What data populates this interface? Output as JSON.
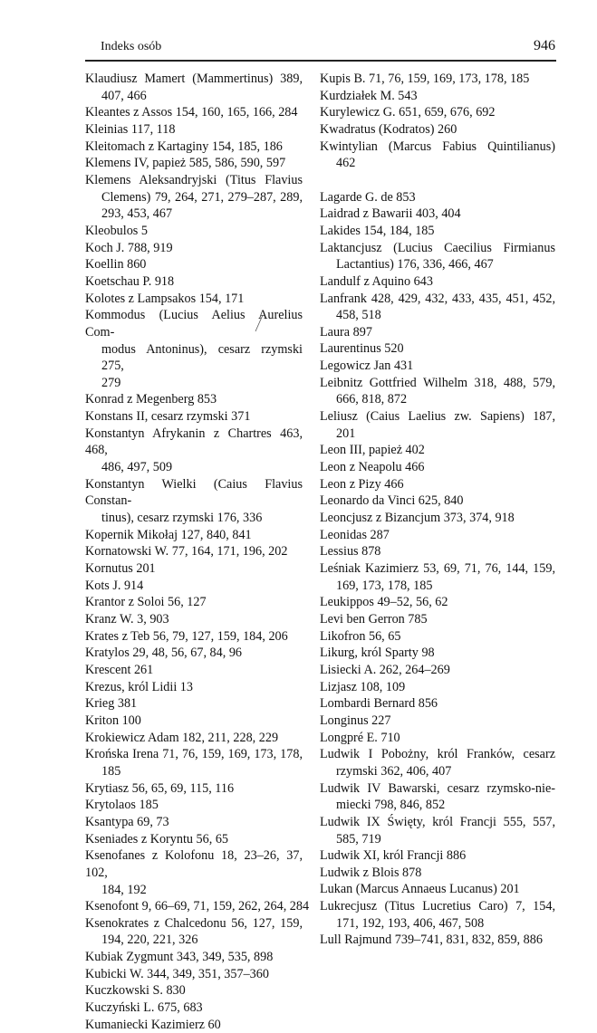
{
  "header": {
    "section_title": "Indeks osób",
    "page_number": "946"
  },
  "left_column": [
    {
      "lines": [
        "Klaudiusz Mamert (Mammertinus) 389,",
        "407, 466"
      ]
    },
    {
      "lines": [
        "Kleantes z Assos 154, 160, 165, 166, 284"
      ]
    },
    {
      "lines": [
        "Kleinias 117, 118"
      ]
    },
    {
      "lines": [
        "Kleitomach z Kartaginy 154, 185, 186"
      ]
    },
    {
      "lines": [
        "Klemens IV, papież 585, 586, 590, 597"
      ]
    },
    {
      "lines": [
        "Klemens Aleksandryjski (Titus Flavius",
        "Clemens) 79, 264, 271, 279–287, 289,",
        "293, 453, 467"
      ]
    },
    {
      "lines": [
        "Kleobulos 5"
      ]
    },
    {
      "lines": [
        "Koch J. 788, 919"
      ]
    },
    {
      "lines": [
        "Koellin 860"
      ]
    },
    {
      "lines": [
        "Koetschau P. 918"
      ]
    },
    {
      "lines": [
        "Kolotes z Lampsakos 154, 171"
      ]
    },
    {
      "lines": [
        "Kommodus (Lucius Aelius Aurelius Com-",
        "modus Antoninus), cesarz rzymski 275,",
        "279"
      ]
    },
    {
      "lines": [
        "Konrad z Megenberg 853"
      ]
    },
    {
      "lines": [
        "Konstans II, cesarz rzymski 371"
      ]
    },
    {
      "lines": [
        "Konstantyn Afrykanin z Chartres 463, 468,",
        "486, 497, 509"
      ]
    },
    {
      "lines": [
        "Konstantyn Wielki (Caius Flavius Constan-",
        "tinus), cesarz rzymski 176, 336"
      ]
    },
    {
      "lines": [
        "Kopernik Mikołaj 127, 840, 841"
      ]
    },
    {
      "lines": [
        "Kornatowski W. 77, 164, 171, 196, 202"
      ]
    },
    {
      "lines": [
        "Kornutus 201"
      ]
    },
    {
      "lines": [
        "Kots J. 914"
      ]
    },
    {
      "lines": [
        "Krantor z Soloi 56, 127"
      ]
    },
    {
      "lines": [
        "Kranz W. 3, 903"
      ]
    },
    {
      "lines": [
        "Krates z Teb 56, 79, 127, 159, 184, 206"
      ]
    },
    {
      "lines": [
        "Kratylos 29, 48, 56, 67, 84, 96"
      ]
    },
    {
      "lines": [
        "Krescent 261"
      ]
    },
    {
      "lines": [
        "Krezus, król Lidii 13"
      ]
    },
    {
      "lines": [
        "Krieg 381"
      ]
    },
    {
      "lines": [
        "Kriton 100"
      ]
    },
    {
      "lines": [
        "Krokiewicz Adam 182, 211, 228, 229"
      ]
    },
    {
      "lines": [
        "Krońska Irena 71, 76, 159, 169, 173, 178,",
        "185"
      ]
    },
    {
      "lines": [
        "Krytiasz 56, 65, 69, 115, 116"
      ]
    },
    {
      "lines": [
        "Krytolaos 185"
      ]
    },
    {
      "lines": [
        "Ksantypa 69, 73"
      ]
    },
    {
      "lines": [
        "Kseniades z Koryntu 56, 65"
      ]
    },
    {
      "lines": [
        "Ksenofanes z Kolofonu 18, 23–26, 37, 102,",
        "184, 192"
      ]
    },
    {
      "lines": [
        "Ksenofont 9, 66–69, 71, 159, 262, 264, 284"
      ]
    },
    {
      "lines": [
        "Ksenokrates z Chalcedonu 56, 127, 159,",
        "194, 220, 221, 326"
      ]
    },
    {
      "lines": [
        "Kubiak Zygmunt 343, 349, 535, 898"
      ]
    },
    {
      "lines": [
        "Kubicki W. 344, 349, 351, 357–360"
      ]
    },
    {
      "lines": [
        "Kuczkowski S. 830"
      ]
    },
    {
      "lines": [
        "Kuczyński L. 675, 683"
      ]
    },
    {
      "lines": [
        "Kumaniecki Kazimierz 60"
      ]
    }
  ],
  "right_column": [
    {
      "lines": [
        "Kupis B. 71, 76, 159, 169, 173, 178, 185"
      ]
    },
    {
      "lines": [
        "Kurdziałek M. 543"
      ]
    },
    {
      "lines": [
        "Kurylewicz G. 651, 659, 676, 692"
      ]
    },
    {
      "lines": [
        "Kwadratus (Kodratos) 260"
      ]
    },
    {
      "lines": [
        "Kwintylian (Marcus Fabius Quintilianus)",
        "462"
      ]
    },
    {
      "blank": true
    },
    {
      "lines": [
        "Lagarde G. de 853"
      ]
    },
    {
      "lines": [
        "Laidrad z Bawarii 403, 404"
      ]
    },
    {
      "lines": [
        "Lakides 154, 184, 185"
      ]
    },
    {
      "lines": [
        "Laktancjusz (Lucius Caecilius Firmianus",
        "Lactantius) 176, 336, 466, 467"
      ]
    },
    {
      "lines": [
        "Landulf z Aquino 643"
      ]
    },
    {
      "lines": [
        "Lanfrank 428, 429, 432, 433, 435, 451, 452,",
        "458, 518"
      ]
    },
    {
      "lines": [
        "Laura 897"
      ]
    },
    {
      "lines": [
        "Laurentinus 520"
      ]
    },
    {
      "lines": [
        "Legowicz Jan 431"
      ]
    },
    {
      "lines": [
        "Leibnitz Gottfried Wilhelm 318, 488, 579,",
        "666, 818, 872"
      ]
    },
    {
      "lines": [
        "Leliusz (Caius Laelius zw. Sapiens) 187,",
        "201"
      ]
    },
    {
      "lines": [
        "Leon III, papież 402"
      ]
    },
    {
      "lines": [
        "Leon z Neapolu 466"
      ]
    },
    {
      "lines": [
        "Leon z Pizy 466"
      ]
    },
    {
      "lines": [
        "Leonardo da Vinci 625, 840"
      ]
    },
    {
      "lines": [
        "Leoncjusz z Bizancjum 373, 374, 918"
      ]
    },
    {
      "lines": [
        "Leonidas 287"
      ]
    },
    {
      "lines": [
        "Lessius 878"
      ]
    },
    {
      "lines": [
        "Leśniak Kazimierz 53, 69, 71, 76, 144, 159,",
        "169, 173, 178, 185"
      ]
    },
    {
      "lines": [
        "Leukippos 49–52, 56, 62"
      ]
    },
    {
      "lines": [
        "Levi ben Gerron 785"
      ]
    },
    {
      "lines": [
        "Likofron 56, 65"
      ]
    },
    {
      "lines": [
        "Likurg, król Sparty 98"
      ]
    },
    {
      "lines": [
        "Lisiecki A. 262, 264–269"
      ]
    },
    {
      "lines": [
        "Lizjasz 108, 109"
      ]
    },
    {
      "lines": [
        "Lombardi Bernard 856"
      ]
    },
    {
      "lines": [
        "Longinus 227"
      ]
    },
    {
      "lines": [
        "Longpré E. 710"
      ]
    },
    {
      "lines": [
        "Ludwik I Pobożny, król Franków, cesarz",
        "rzymski 362, 406, 407"
      ]
    },
    {
      "lines": [
        "Ludwik IV Bawarski, cesarz rzymsko-nie-",
        "miecki 798, 846, 852"
      ]
    },
    {
      "lines": [
        "Ludwik IX Święty, król Francji 555, 557,",
        "585, 719"
      ]
    },
    {
      "lines": [
        "Ludwik XI, król Francji 886"
      ]
    },
    {
      "lines": [
        "Ludwik z Blois 878"
      ]
    },
    {
      "lines": [
        "Lukan (Marcus Annaeus Lucanus) 201"
      ]
    },
    {
      "lines": [
        "Lukrecjusz (Titus Lucretius Caro) 7, 154,",
        "171, 192, 193, 406, 467, 508"
      ]
    },
    {
      "lines": [
        "Lull Rajmund 739–741, 831, 832, 859, 886"
      ]
    }
  ]
}
